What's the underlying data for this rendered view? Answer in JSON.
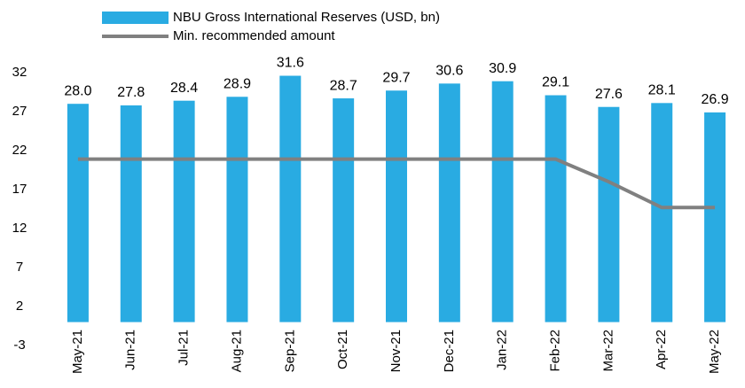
{
  "chart_data": {
    "type": "bar_line",
    "categories": [
      "May-21",
      "Jun-21",
      "Jul-21",
      "Aug-21",
      "Sep-21",
      "Oct-21",
      "Nov-21",
      "Dec-21",
      "Jan-22",
      "Feb-22",
      "Mar-22",
      "Apr-22",
      "May-22"
    ],
    "series": [
      {
        "name": "NBU Gross International Reserves (USD, bn)",
        "type": "bar",
        "color": "#29abe2",
        "values": [
          28.0,
          27.8,
          28.4,
          28.9,
          31.6,
          28.7,
          29.7,
          30.6,
          30.9,
          29.1,
          27.6,
          28.1,
          26.9
        ],
        "value_labels": [
          "28.0",
          "27.8",
          "28.4",
          "28.9",
          "31.6",
          "28.7",
          "29.7",
          "30.6",
          "30.9",
          "29.1",
          "27.6",
          "28.1",
          "26.9"
        ]
      },
      {
        "name": "Min. recommended amount",
        "type": "line",
        "color": "#808080",
        "values": [
          20.9,
          20.9,
          20.9,
          20.9,
          20.9,
          20.9,
          20.9,
          20.9,
          20.9,
          20.9,
          18.0,
          14.7,
          14.7
        ]
      }
    ],
    "ylim": [
      -3,
      32
    ],
    "yticks": [
      -3,
      2,
      7,
      12,
      17,
      22,
      27,
      32
    ],
    "grid": false
  }
}
